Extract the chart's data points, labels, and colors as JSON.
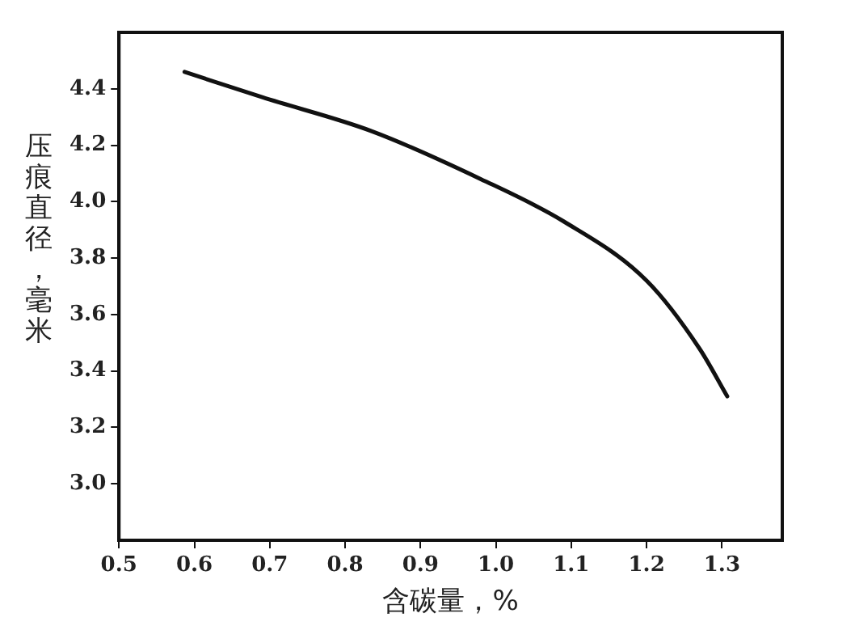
{
  "chart_data": {
    "type": "line",
    "xlabel": "含碳量，%",
    "ylabel": "压痕直径，毫米",
    "x": [
      0.587,
      0.69,
      0.835,
      0.98,
      1.09,
      1.2,
      1.27,
      1.307
    ],
    "series": [
      {
        "color": "#111111",
        "values": [
          4.46,
          4.37,
          4.25,
          4.08,
          3.93,
          3.72,
          3.48,
          3.31
        ]
      }
    ],
    "xlim": [
      0.5,
      1.38
    ],
    "xticks": [
      0.5,
      0.6,
      0.7,
      0.8,
      0.9,
      {
        "value": 1,
        "label": "1.0"
      },
      1.1,
      1.2,
      1.3
    ],
    "ylim": [
      2.8,
      4.6
    ],
    "yticks": [
      {
        "value": 3,
        "label": "3.0"
      },
      3.2,
      3.4,
      3.6,
      3.8,
      {
        "value": 4,
        "label": "4.0"
      },
      4.2,
      4.4
    ],
    "grid": false,
    "legend": false,
    "marker": "none",
    "line_style": "solid"
  }
}
